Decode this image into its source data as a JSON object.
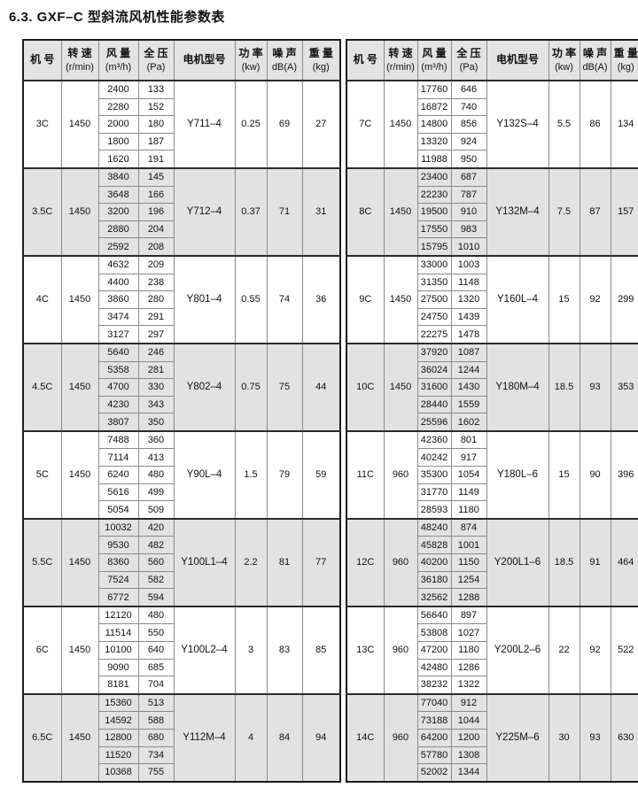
{
  "title": "6.3. GXF–C 型斜流风机性能参数表",
  "columns": [
    {
      "l1": "机 号",
      "l2": ""
    },
    {
      "l1": "转 速",
      "l2": "(r/min)"
    },
    {
      "l1": "风 量",
      "l2": "(m³/h)"
    },
    {
      "l1": "全 压",
      "l2": "(Pa)"
    },
    {
      "l1": "电机型号",
      "l2": ""
    },
    {
      "l1": "功 率",
      "l2": "(kw)"
    },
    {
      "l1": "噪 声",
      "l2": "dB(A)"
    },
    {
      "l1": "重 量",
      "l2": "(kg)"
    }
  ],
  "left_groups": [
    {
      "model": "3C",
      "speed": "1450",
      "motor": "Y711–4",
      "power": "0.25",
      "noise": "69",
      "weight": "27",
      "rows": [
        [
          "2400",
          "133"
        ],
        [
          "2280",
          "152"
        ],
        [
          "2000",
          "180"
        ],
        [
          "1800",
          "187"
        ],
        [
          "1620",
          "191"
        ]
      ]
    },
    {
      "model": "3.5C",
      "speed": "1450",
      "motor": "Y712–4",
      "power": "0.37",
      "noise": "71",
      "weight": "31",
      "rows": [
        [
          "3840",
          "145"
        ],
        [
          "3648",
          "166"
        ],
        [
          "3200",
          "196"
        ],
        [
          "2880",
          "204"
        ],
        [
          "2592",
          "208"
        ]
      ]
    },
    {
      "model": "4C",
      "speed": "1450",
      "motor": "Y801–4",
      "power": "0.55",
      "noise": "74",
      "weight": "36",
      "rows": [
        [
          "4632",
          "209"
        ],
        [
          "4400",
          "238"
        ],
        [
          "3860",
          "280"
        ],
        [
          "3474",
          "291"
        ],
        [
          "3127",
          "297"
        ]
      ]
    },
    {
      "model": "4.5C",
      "speed": "1450",
      "motor": "Y802–4",
      "power": "0.75",
      "noise": "75",
      "weight": "44",
      "rows": [
        [
          "5640",
          "246"
        ],
        [
          "5358",
          "281"
        ],
        [
          "4700",
          "330"
        ],
        [
          "4230",
          "343"
        ],
        [
          "3807",
          "350"
        ]
      ]
    },
    {
      "model": "5C",
      "speed": "1450",
      "motor": "Y90L–4",
      "power": "1.5",
      "noise": "79",
      "weight": "59",
      "rows": [
        [
          "7488",
          "360"
        ],
        [
          "7114",
          "413"
        ],
        [
          "6240",
          "480"
        ],
        [
          "5616",
          "499"
        ],
        [
          "5054",
          "509"
        ]
      ]
    },
    {
      "model": "5.5C",
      "speed": "1450",
      "motor": "Y100L1–4",
      "power": "2.2",
      "noise": "81",
      "weight": "77",
      "rows": [
        [
          "10032",
          "420"
        ],
        [
          "9530",
          "482"
        ],
        [
          "8360",
          "560"
        ],
        [
          "7524",
          "582"
        ],
        [
          "6772",
          "594"
        ]
      ]
    },
    {
      "model": "6C",
      "speed": "1450",
      "motor": "Y100L2–4",
      "power": "3",
      "noise": "83",
      "weight": "85",
      "rows": [
        [
          "12120",
          "480"
        ],
        [
          "11514",
          "550"
        ],
        [
          "10100",
          "640"
        ],
        [
          "9090",
          "685"
        ],
        [
          "8181",
          "704"
        ]
      ]
    },
    {
      "model": "6.5C",
      "speed": "1450",
      "motor": "Y112M–4",
      "power": "4",
      "noise": "84",
      "weight": "94",
      "rows": [
        [
          "15360",
          "513"
        ],
        [
          "14592",
          "588"
        ],
        [
          "12800",
          "680"
        ],
        [
          "11520",
          "734"
        ],
        [
          "10368",
          "755"
        ]
      ]
    }
  ],
  "right_groups": [
    {
      "model": "7C",
      "speed": "1450",
      "motor": "Y132S–4",
      "power": "5.5",
      "noise": "86",
      "weight": "134",
      "rows": [
        [
          "17760",
          "646"
        ],
        [
          "16872",
          "740"
        ],
        [
          "14800",
          "856"
        ],
        [
          "13320",
          "924"
        ],
        [
          "11988",
          "950"
        ]
      ]
    },
    {
      "model": "8C",
      "speed": "1450",
      "motor": "Y132M–4",
      "power": "7.5",
      "noise": "87",
      "weight": "157",
      "rows": [
        [
          "23400",
          "687"
        ],
        [
          "22230",
          "787"
        ],
        [
          "19500",
          "910"
        ],
        [
          "17550",
          "983"
        ],
        [
          "15795",
          "1010"
        ]
      ]
    },
    {
      "model": "9C",
      "speed": "1450",
      "motor": "Y160L–4",
      "power": "15",
      "noise": "92",
      "weight": "299",
      "rows": [
        [
          "33000",
          "1003"
        ],
        [
          "31350",
          "1148"
        ],
        [
          "27500",
          "1320"
        ],
        [
          "24750",
          "1439"
        ],
        [
          "22275",
          "1478"
        ]
      ]
    },
    {
      "model": "10C",
      "speed": "1450",
      "motor": "Y180M–4",
      "power": "18.5",
      "noise": "93",
      "weight": "353",
      "rows": [
        [
          "37920",
          "1087"
        ],
        [
          "36024",
          "1244"
        ],
        [
          "31600",
          "1430"
        ],
        [
          "28440",
          "1559"
        ],
        [
          "25596",
          "1602"
        ]
      ]
    },
    {
      "model": "11C",
      "speed": "960",
      "motor": "Y180L–6",
      "power": "15",
      "noise": "90",
      "weight": "396",
      "rows": [
        [
          "42360",
          "801"
        ],
        [
          "40242",
          "917"
        ],
        [
          "35300",
          "1054"
        ],
        [
          "31770",
          "1149"
        ],
        [
          "28593",
          "1180"
        ]
      ]
    },
    {
      "model": "12C",
      "speed": "960",
      "motor": "Y200L1–6",
      "power": "18.5",
      "noise": "91",
      "weight": "464",
      "rows": [
        [
          "48240",
          "874"
        ],
        [
          "45828",
          "1001"
        ],
        [
          "40200",
          "1150"
        ],
        [
          "36180",
          "1254"
        ],
        [
          "32562",
          "1288"
        ]
      ]
    },
    {
      "model": "13C",
      "speed": "960",
      "motor": "Y200L2–6",
      "power": "22",
      "noise": "92",
      "weight": "522",
      "rows": [
        [
          "56640",
          "897"
        ],
        [
          "53808",
          "1027"
        ],
        [
          "47200",
          "1180"
        ],
        [
          "42480",
          "1286"
        ],
        [
          "38232",
          "1322"
        ]
      ]
    },
    {
      "model": "14C",
      "speed": "960",
      "motor": "Y225M–6",
      "power": "30",
      "noise": "93",
      "weight": "630",
      "rows": [
        [
          "77040",
          "912"
        ],
        [
          "73188",
          "1044"
        ],
        [
          "64200",
          "1200"
        ],
        [
          "57780",
          "1308"
        ],
        [
          "52002",
          "1344"
        ]
      ]
    }
  ]
}
